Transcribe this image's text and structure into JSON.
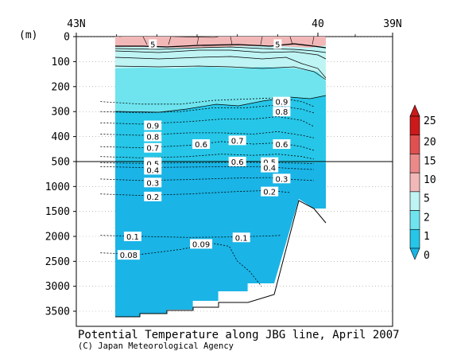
{
  "title": "Potential Temperature along JBG line, April 2007",
  "credit": "(C) Japan Meteorological Agency",
  "y_unit": "(m)",
  "colors": {
    "warm_5_plus": "#f2b8b8",
    "band_2_5": "#bff4f4",
    "band_1_2": "#6fe4ee",
    "band_0_1": "#26c6e8",
    "bottom": "#1ab4e6",
    "contour": "#000000"
  },
  "chart_data": {
    "type": "heatmap",
    "title": "Potential Temperature along JBG line, April 2007",
    "x_axis": {
      "label": "",
      "ticks": [
        "43N",
        "40",
        "39N"
      ],
      "tick_positions_lat": [
        43,
        40,
        39
      ],
      "direction": "north-to-south"
    },
    "y_axis": {
      "label": "(m)",
      "ticks": [
        0,
        100,
        200,
        300,
        400,
        500,
        1000,
        1500,
        2000,
        2500,
        3000,
        3500
      ],
      "scale": "piecewise: linear 0-500, compressed 500-3500",
      "inverted": true
    },
    "colorbar": {
      "ticks": [
        0,
        1,
        2,
        5,
        10,
        15,
        20,
        25
      ],
      "colors": [
        "#1ab4e6",
        "#26c6e8",
        "#6fe4ee",
        "#bff4f4",
        "#f2b8b8",
        "#ec8a8a",
        "#e05050",
        "#cc1a1a"
      ]
    },
    "contour_labels": [
      {
        "text": "5",
        "lat": 42.05,
        "depth": 30
      },
      {
        "text": "5",
        "lat": 40.5,
        "depth": 30
      },
      {
        "text": "0.9",
        "lat": 40.45,
        "depth": 260
      },
      {
        "text": "0.8",
        "lat": 40.45,
        "depth": 300
      },
      {
        "text": "0.9",
        "lat": 42.05,
        "depth": 355
      },
      {
        "text": "0.8",
        "lat": 42.05,
        "depth": 400
      },
      {
        "text": "0.7",
        "lat": 42.05,
        "depth": 445
      },
      {
        "text": "0.6",
        "lat": 41.45,
        "depth": 430
      },
      {
        "text": "0.7",
        "lat": 41.0,
        "depth": 415
      },
      {
        "text": "0.6",
        "lat": 40.45,
        "depth": 430
      },
      {
        "text": "0.6",
        "lat": 42.05,
        "depth": 510
      },
      {
        "text": "0.5",
        "lat": 42.05,
        "depth": 540
      },
      {
        "text": "0.4",
        "lat": 42.05,
        "depth": 665
      },
      {
        "text": "0.3",
        "lat": 42.05,
        "depth": 920
      },
      {
        "text": "0.2",
        "lat": 42.05,
        "depth": 1200
      },
      {
        "text": "0.6",
        "lat": 41.0,
        "depth": 500
      },
      {
        "text": "0.5",
        "lat": 40.6,
        "depth": 510
      },
      {
        "text": "0.4",
        "lat": 40.6,
        "depth": 620
      },
      {
        "text": "0.3",
        "lat": 40.45,
        "depth": 840
      },
      {
        "text": "0.2",
        "lat": 40.6,
        "depth": 1100
      },
      {
        "text": "0.1",
        "lat": 42.3,
        "depth": 2000
      },
      {
        "text": "0.1",
        "lat": 40.95,
        "depth": 2020
      },
      {
        "text": "0.09",
        "lat": 41.45,
        "depth": 2150
      },
      {
        "text": "0.08",
        "lat": 42.35,
        "depth": 2370
      }
    ],
    "bands": [
      {
        "range": ">=5",
        "top_depth": 0,
        "bottom_depth": 30
      },
      {
        "range": "2-5",
        "top_depth": 30,
        "bottom_depth": 120
      },
      {
        "range": "1-2",
        "top_depth": 120,
        "bottom_depth": 300
      },
      {
        "range": "0-1",
        "top_depth": 300,
        "bottom_depth": 3600
      }
    ]
  }
}
